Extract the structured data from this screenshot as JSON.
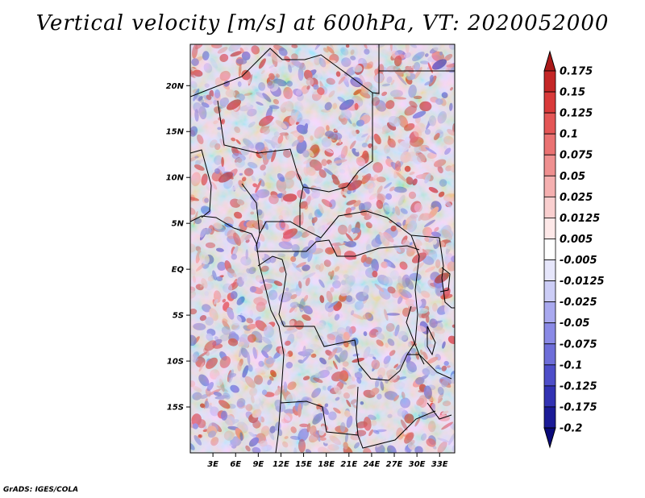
{
  "title": "Vertical velocity [m/s] at 600hPa, VT: 2020052000",
  "credit": "GrADS: IGES/COLA",
  "map": {
    "lat_labels": [
      "20N",
      "15N",
      "10N",
      "5N",
      "EQ",
      "5S",
      "10S",
      "15S"
    ],
    "lon_labels": [
      "3E",
      "6E",
      "9E",
      "12E",
      "15E",
      "18E",
      "21E",
      "24E",
      "27E",
      "30E",
      "33E"
    ],
    "lon_range": [
      0,
      35
    ],
    "lat_range": [
      -20,
      24.5
    ]
  },
  "colorbar": {
    "levels": [
      "0.175",
      "0.15",
      "0.125",
      "0.1",
      "0.075",
      "0.05",
      "0.025",
      "0.0125",
      "0.005",
      "-0.005",
      "-0.0125",
      "-0.025",
      "-0.05",
      "-0.075",
      "-0.1",
      "-0.125",
      "-0.175",
      "-0.2"
    ],
    "colors": [
      "#ab1a1a",
      "#c42626",
      "#d93a3a",
      "#e45656",
      "#ea7272",
      "#ef9090",
      "#f5b0b0",
      "#f9cfcf",
      "#fde8e8",
      "#ffffff",
      "#e6e6fb",
      "#cccdf6",
      "#a9a9ef",
      "#8a8ae6",
      "#6e6ed9",
      "#4e4ec9",
      "#3232b3",
      "#1b1b97",
      "#0a0a7a"
    ]
  }
}
